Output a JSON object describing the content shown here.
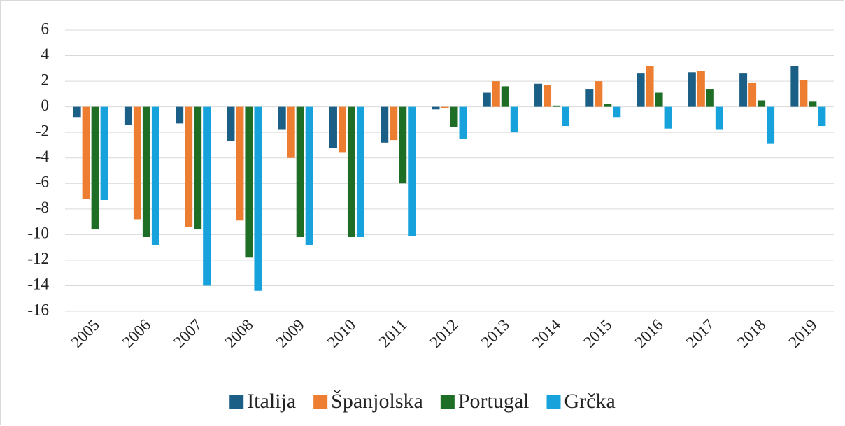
{
  "chart_data": {
    "type": "bar",
    "categories": [
      "2005",
      "2006",
      "2007",
      "2008",
      "2009",
      "2010",
      "2011",
      "2012",
      "2013",
      "2014",
      "2015",
      "2016",
      "2017",
      "2018",
      "2019"
    ],
    "series": [
      {
        "name": "Italija",
        "color": "#1c5f86",
        "values": [
          -0.8,
          -1.4,
          -1.3,
          -2.7,
          -1.8,
          -3.2,
          -2.8,
          -0.2,
          1.1,
          1.8,
          1.4,
          2.6,
          2.7,
          2.6,
          3.2
        ]
      },
      {
        "name": "Španjolska",
        "color": "#ed7d31",
        "values": [
          -7.2,
          -8.8,
          -9.4,
          -8.9,
          -4.0,
          -3.6,
          -2.6,
          -0.1,
          2.0,
          1.7,
          2.0,
          3.2,
          2.8,
          1.9,
          2.1
        ]
      },
      {
        "name": "Portugal",
        "color": "#1f6e25",
        "values": [
          -9.6,
          -10.2,
          -9.6,
          -11.8,
          -10.2,
          -10.2,
          -6.0,
          -1.6,
          1.6,
          0.1,
          0.2,
          1.1,
          1.4,
          0.5,
          0.4
        ]
      },
      {
        "name": "Grčka",
        "color": "#17a2dc",
        "values": [
          -7.3,
          -10.8,
          -14.0,
          -14.4,
          -10.8,
          -10.2,
          -10.1,
          -2.5,
          -2.0,
          -1.5,
          -0.8,
          -1.7,
          -1.8,
          -2.9,
          -1.5
        ]
      }
    ],
    "ylim": [
      -16,
      6
    ],
    "yticks": [
      -16,
      -14,
      -12,
      -10,
      -8,
      -6,
      -4,
      -2,
      0,
      2,
      4,
      6
    ],
    "grid": true,
    "legend": "bottom"
  }
}
